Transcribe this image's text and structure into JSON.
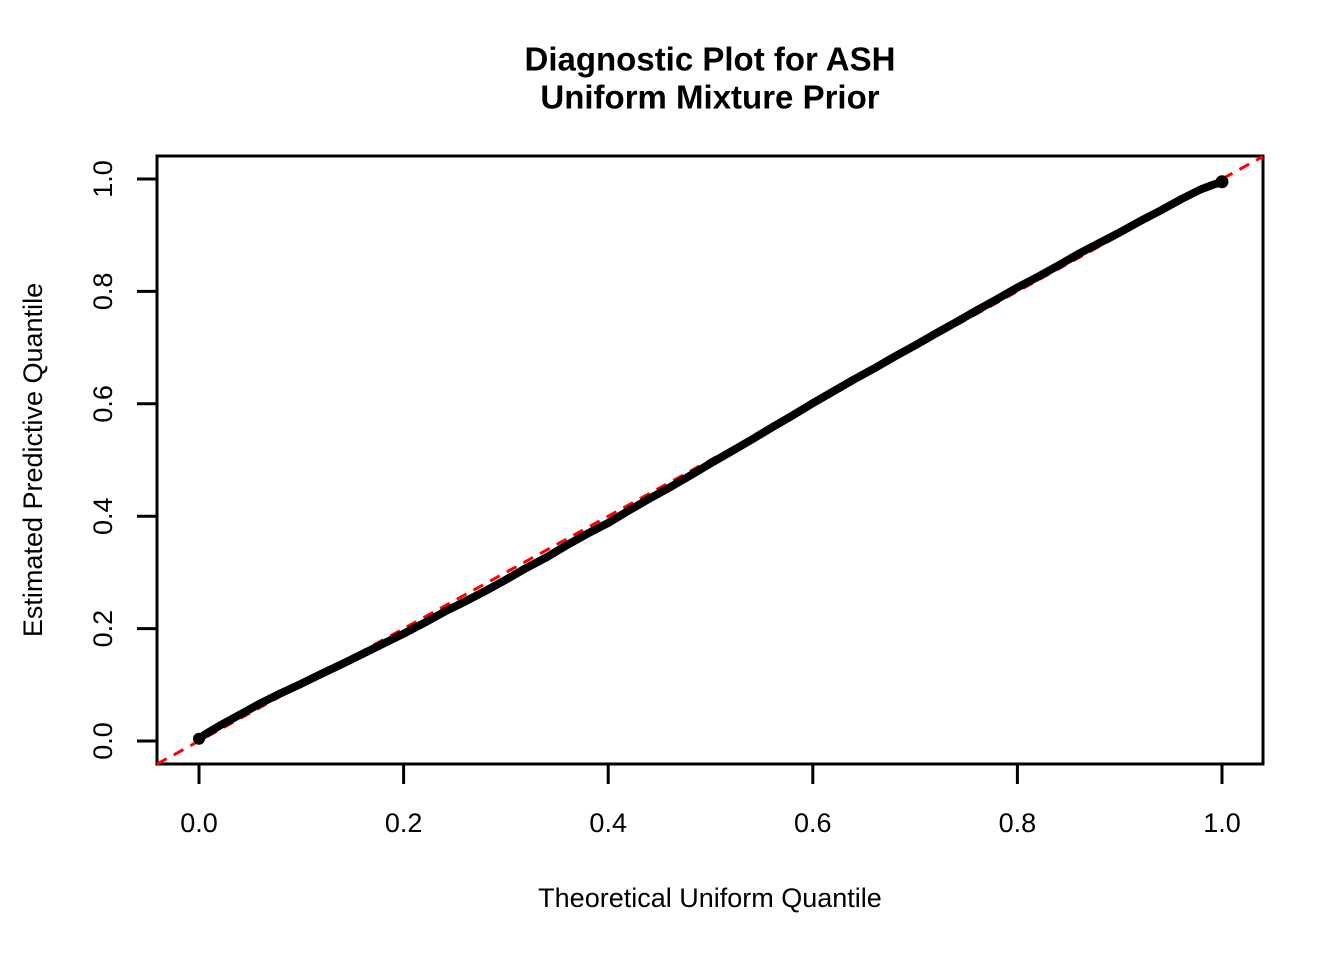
{
  "title": {
    "line1": "Diagnostic Plot for ASH",
    "line2": "Uniform Mixture Prior"
  },
  "axes": {
    "x": {
      "label": "Theoretical Uniform Quantile",
      "tick_values": [
        0.0,
        0.2,
        0.4,
        0.6,
        0.8,
        1.0
      ],
      "tick_labels": [
        "0.0",
        "0.2",
        "0.4",
        "0.6",
        "0.8",
        "1.0"
      ],
      "range": [
        -0.041,
        1.04
      ]
    },
    "y": {
      "label": "Estimated Predictive Quantile",
      "tick_values": [
        0.0,
        0.2,
        0.4,
        0.6,
        0.8,
        1.0
      ],
      "tick_labels": [
        "0.0",
        "0.2",
        "0.4",
        "0.6",
        "0.8",
        "1.0"
      ],
      "range": [
        -0.043,
        1.041
      ]
    }
  },
  "colors": {
    "background": "#FFFFFF",
    "axis": "#000000",
    "curve": "#000000",
    "reference_line": "#FF0000"
  },
  "chart_data": {
    "type": "line",
    "title": "Diagnostic Plot for ASH\nUniform Mixture Prior",
    "xlabel": "Theoretical Uniform Quantile",
    "ylabel": "Estimated Predictive Quantile",
    "xlim": [
      -0.041,
      1.04
    ],
    "ylim": [
      -0.043,
      1.041
    ],
    "grid": false,
    "legend": "none",
    "series": [
      {
        "name": "estimated-vs-theoretical-quantiles",
        "style": "thick-point-band",
        "color": "#000000",
        "points": [
          [
            0.0,
            0.004
          ],
          [
            0.006,
            0.012
          ],
          [
            0.02,
            0.027
          ],
          [
            0.04,
            0.047
          ],
          [
            0.06,
            0.067
          ],
          [
            0.08,
            0.085
          ],
          [
            0.1,
            0.102
          ],
          [
            0.12,
            0.12
          ],
          [
            0.14,
            0.137
          ],
          [
            0.16,
            0.155
          ],
          [
            0.18,
            0.173
          ],
          [
            0.2,
            0.191
          ],
          [
            0.22,
            0.21
          ],
          [
            0.24,
            0.23
          ],
          [
            0.26,
            0.248
          ],
          [
            0.28,
            0.267
          ],
          [
            0.3,
            0.287
          ],
          [
            0.32,
            0.308
          ],
          [
            0.34,
            0.327
          ],
          [
            0.36,
            0.349
          ],
          [
            0.38,
            0.369
          ],
          [
            0.4,
            0.388
          ],
          [
            0.42,
            0.41
          ],
          [
            0.44,
            0.431
          ],
          [
            0.46,
            0.451
          ],
          [
            0.48,
            0.472
          ],
          [
            0.5,
            0.494
          ],
          [
            0.52,
            0.515
          ],
          [
            0.54,
            0.536
          ],
          [
            0.56,
            0.558
          ],
          [
            0.58,
            0.579
          ],
          [
            0.6,
            0.601
          ],
          [
            0.62,
            0.622
          ],
          [
            0.64,
            0.643
          ],
          [
            0.66,
            0.663
          ],
          [
            0.68,
            0.684
          ],
          [
            0.7,
            0.704
          ],
          [
            0.72,
            0.725
          ],
          [
            0.74,
            0.745
          ],
          [
            0.76,
            0.766
          ],
          [
            0.78,
            0.786
          ],
          [
            0.8,
            0.807
          ],
          [
            0.82,
            0.826
          ],
          [
            0.84,
            0.846
          ],
          [
            0.86,
            0.867
          ],
          [
            0.88,
            0.886
          ],
          [
            0.9,
            0.905
          ],
          [
            0.92,
            0.925
          ],
          [
            0.94,
            0.944
          ],
          [
            0.96,
            0.964
          ],
          [
            0.98,
            0.982
          ],
          [
            0.99,
            0.989
          ],
          [
            1.0,
            0.995
          ]
        ]
      },
      {
        "name": "reference-diagonal",
        "style": "dashed-line",
        "color": "#FF0000",
        "from": [
          -0.041,
          -0.041
        ],
        "to": [
          1.04,
          1.04
        ]
      }
    ]
  }
}
